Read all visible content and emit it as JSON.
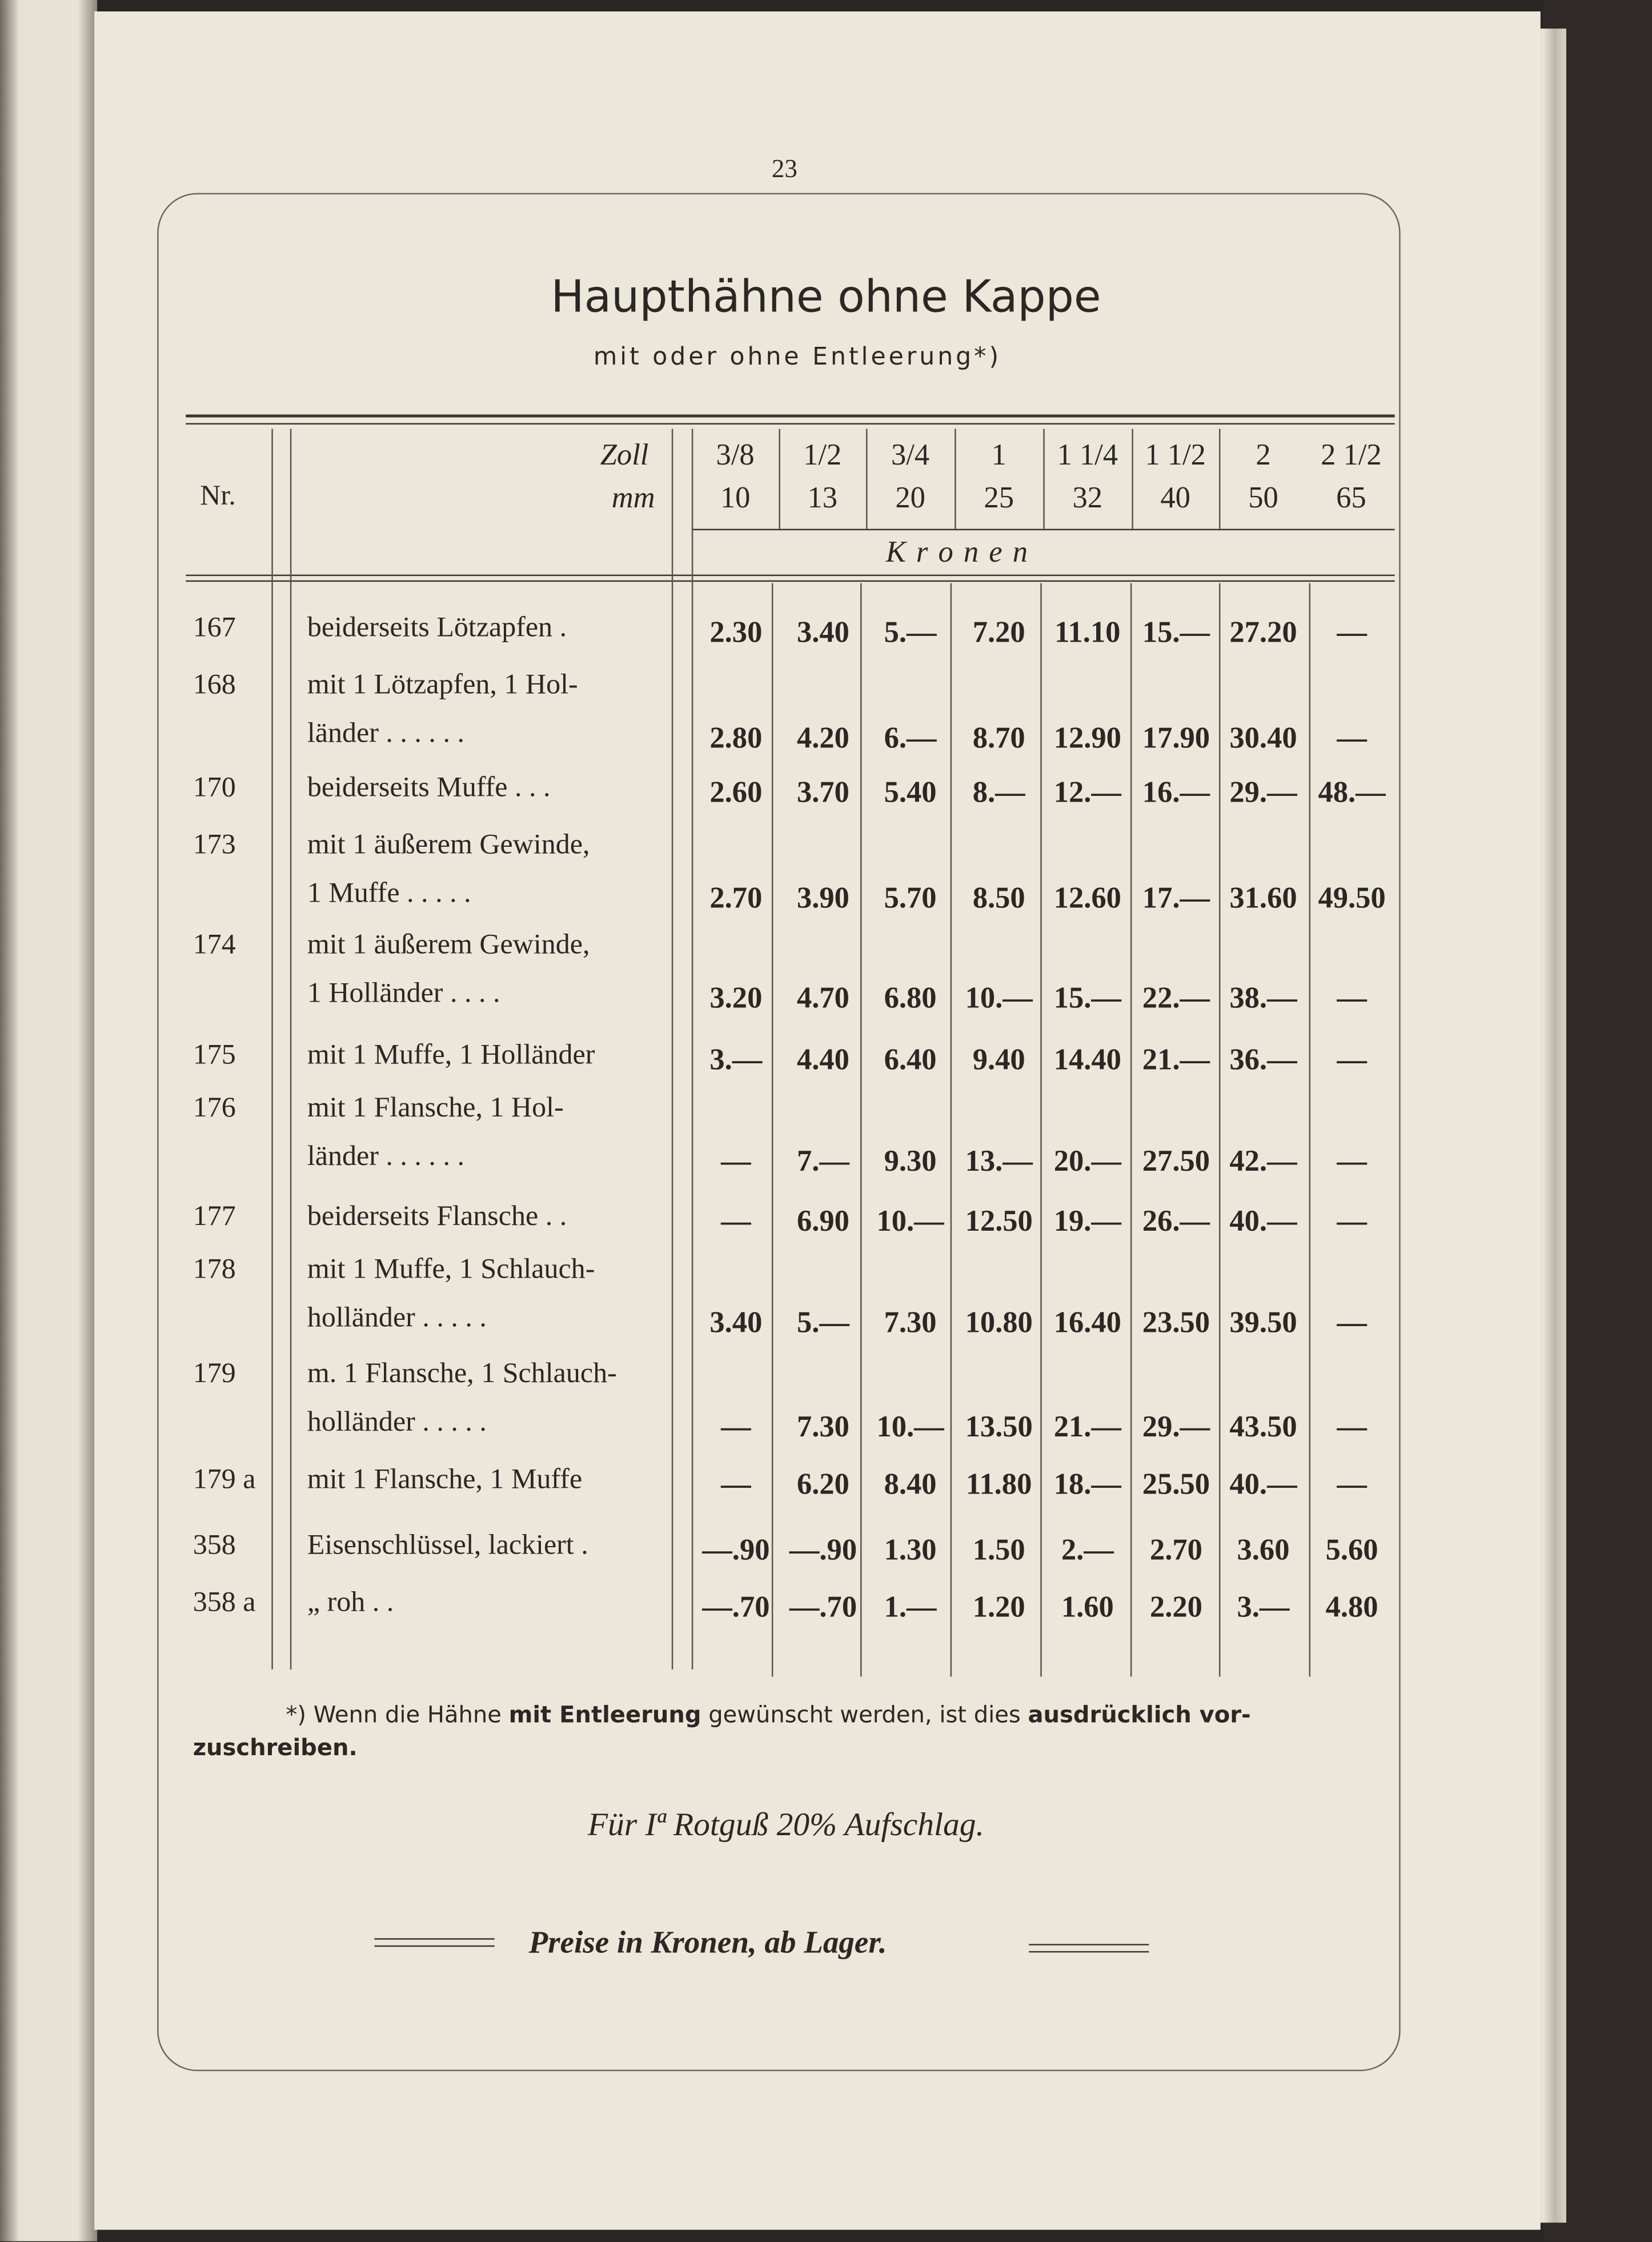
{
  "page_number": "23",
  "title": "Haupthähne ohne Kappe",
  "subtitle": "mit oder ohne Entleerung*)",
  "table": {
    "nr_header": "Nr.",
    "zoll_label": "Zoll",
    "mm_label": "mm",
    "currency_label": "K r o n e n",
    "columns": [
      {
        "zoll": "3/8",
        "mm": "10"
      },
      {
        "zoll": "1/2",
        "mm": "13"
      },
      {
        "zoll": "3/4",
        "mm": "20"
      },
      {
        "zoll": "1",
        "mm": "25"
      },
      {
        "zoll": "1 1/4",
        "mm": "32"
      },
      {
        "zoll": "1 1/2",
        "mm": "40"
      },
      {
        "zoll": "2",
        "mm": "50"
      },
      {
        "zoll": "2 1/2",
        "mm": "65"
      }
    ],
    "rows": [
      {
        "nr": "167",
        "desc": [
          "beiderseits Lötzapfen ."
        ],
        "prices": [
          "2.30",
          "3.40",
          "5.—",
          "7.20",
          "11.10",
          "15.—",
          "27.20",
          "—"
        ]
      },
      {
        "nr": "168",
        "desc": [
          "mit 1 Lötzapfen, 1 Hol-",
          "länder . . . . . ."
        ],
        "prices": [
          "2.80",
          "4.20",
          "6.—",
          "8.70",
          "12.90",
          "17.90",
          "30.40",
          "—"
        ]
      },
      {
        "nr": "170",
        "desc": [
          "beiderseits Muffe . . ."
        ],
        "prices": [
          "2.60",
          "3.70",
          "5.40",
          "8.—",
          "12.—",
          "16.—",
          "29.—",
          "48.—"
        ]
      },
      {
        "nr": "173",
        "desc": [
          "mit 1 äußerem Gewinde,",
          "1 Muffe . . . . ."
        ],
        "prices": [
          "2.70",
          "3.90",
          "5.70",
          "8.50",
          "12.60",
          "17.—",
          "31.60",
          "49.50"
        ]
      },
      {
        "nr": "174",
        "desc": [
          "mit 1 äußerem Gewinde,",
          "1 Holländer . . . ."
        ],
        "prices": [
          "3.20",
          "4.70",
          "6.80",
          "10.—",
          "15.—",
          "22.—",
          "38.—",
          "—"
        ]
      },
      {
        "nr": "175",
        "desc": [
          "mit 1 Muffe, 1 Holländer"
        ],
        "prices": [
          "3.—",
          "4.40",
          "6.40",
          "9.40",
          "14.40",
          "21.—",
          "36.—",
          "—"
        ]
      },
      {
        "nr": "176",
        "desc": [
          "mit 1 Flansche, 1 Hol-",
          "länder . . . . . ."
        ],
        "prices": [
          "—",
          "7.—",
          "9.30",
          "13.—",
          "20.—",
          "27.50",
          "42.—",
          "—"
        ]
      },
      {
        "nr": "177",
        "desc": [
          "beiderseits Flansche . ."
        ],
        "prices": [
          "—",
          "6.90",
          "10.—",
          "12.50",
          "19.—",
          "26.—",
          "40.—",
          "—"
        ]
      },
      {
        "nr": "178",
        "desc": [
          "mit 1 Muffe, 1 Schlauch-",
          "holländer . . . . ."
        ],
        "prices": [
          "3.40",
          "5.—",
          "7.30",
          "10.80",
          "16.40",
          "23.50",
          "39.50",
          "—"
        ]
      },
      {
        "nr": "179",
        "desc": [
          "m. 1 Flansche, 1 Schlauch-",
          "holländer . . . . ."
        ],
        "prices": [
          "—",
          "7.30",
          "10.—",
          "13.50",
          "21.—",
          "29.—",
          "43.50",
          "—"
        ]
      },
      {
        "nr": "179 a",
        "desc": [
          "mit 1 Flansche, 1 Muffe"
        ],
        "prices": [
          "—",
          "6.20",
          "8.40",
          "11.80",
          "18.—",
          "25.50",
          "40.—",
          "—"
        ]
      },
      {
        "nr": "358",
        "desc": [
          "Eisenschlüssel, lackiert ."
        ],
        "prices": [
          "—.90",
          "—.90",
          "1.30",
          "1.50",
          "2.—",
          "2.70",
          "3.60",
          "5.60"
        ]
      },
      {
        "nr": "358 a",
        "desc": [
          "„        roh . ."
        ],
        "prices": [
          "—.70",
          "—.70",
          "1.—",
          "1.20",
          "1.60",
          "2.20",
          "3.—",
          "4.80"
        ]
      }
    ]
  },
  "footnote": {
    "part1": "*) Wenn die Hähne ",
    "bold1": "mit Entleerung",
    "part2": " gewünscht werden, ist dies ",
    "bold2": "ausdrücklich vor-",
    "line2": "zuschreiben."
  },
  "surcharge_note": "Für Iª Rotguß 20% Aufschlag.",
  "price_note": "Preise in Kronen, ab Lager."
}
